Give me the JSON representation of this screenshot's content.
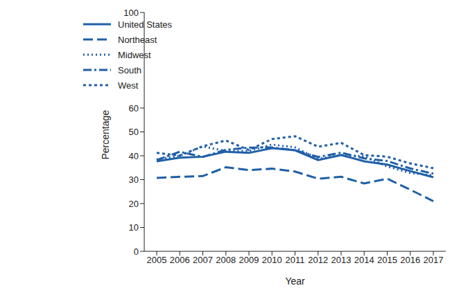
{
  "chart_data": {
    "type": "line",
    "x_label": "Year",
    "y_label": "Percentage",
    "categories": [
      "2005",
      "2006",
      "2007",
      "2008",
      "2009",
      "2010",
      "2011",
      "2012",
      "2013",
      "2014",
      "2015",
      "2016",
      "2017"
    ],
    "series": [
      {
        "name": "United States",
        "color": "#1f5fa8",
        "line_style": "solid",
        "values": [
          37.7,
          39.2,
          39.6,
          41.7,
          41.2,
          43.2,
          42.3,
          38.2,
          40.3,
          37.7,
          36.3,
          33.6,
          31.0
        ]
      },
      {
        "name": "Northeast",
        "color": "#1f5fa8",
        "line_style": "dashed",
        "values": [
          30.7,
          31.2,
          31.5,
          35.2,
          34.0,
          34.6,
          33.4,
          30.4,
          31.2,
          28.4,
          30.4,
          25.8,
          21.0
        ]
      },
      {
        "name": "Midwest",
        "color": "#1f5fa8",
        "line_style": "dotted",
        "values": [
          38.5,
          40.0,
          43.9,
          42.0,
          42.0,
          44.7,
          43.5,
          38.7,
          40.4,
          39.8,
          35.5,
          32.8,
          31.8
        ]
      },
      {
        "name": "South",
        "color": "#1f5fa8",
        "line_style": "dashdot",
        "values": [
          38.2,
          41.7,
          39.5,
          42.5,
          43.4,
          43.5,
          42.3,
          39.5,
          41.3,
          38.9,
          37.8,
          34.7,
          32.5
        ]
      },
      {
        "name": "West",
        "color": "#1f5fa8",
        "line_style": "short_dash",
        "values": [
          41.2,
          40.1,
          44.0,
          46.4,
          42.4,
          47.0,
          48.2,
          43.8,
          45.4,
          40.3,
          39.6,
          36.8,
          34.8
        ]
      }
    ],
    "ylim": [
      0,
      100
    ],
    "yticks": [
      0,
      10,
      20,
      30,
      40,
      50,
      60,
      100
    ],
    "grid": false,
    "legend": "upper left"
  }
}
